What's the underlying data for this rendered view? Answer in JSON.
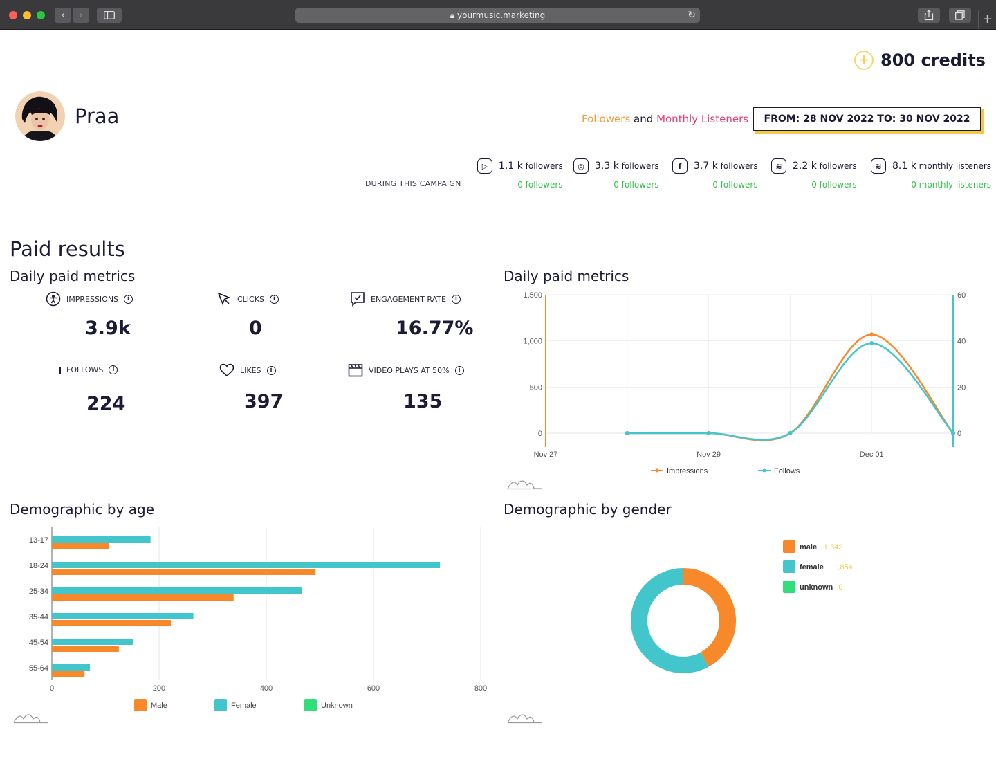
{
  "browser": {
    "url": "yourmusic.marketing"
  },
  "credits": {
    "label": "800 credits"
  },
  "artist": {
    "name": "Praa"
  },
  "legend_top": {
    "followers": "Followers",
    "and": "and",
    "listeners": "Monthly Listeners"
  },
  "date_range": "FROM: 28 NOV 2022 TO: 30 NOV 2022",
  "campaign_label": "DURING THIS CAMPAIGN",
  "social": [
    {
      "icon": "youtube-icon",
      "count": "1.1 k",
      "unit": "followers",
      "delta": "0 followers"
    },
    {
      "icon": "instagram-icon",
      "count": "3.3 k",
      "unit": "followers",
      "delta": "0 followers"
    },
    {
      "icon": "facebook-icon",
      "count": "3.7 k",
      "unit": "followers",
      "delta": "0 followers"
    },
    {
      "icon": "spotify-icon",
      "count": "2.2 k",
      "unit": "followers",
      "delta": "0 followers"
    },
    {
      "icon": "spotify-icon",
      "count": "8.1 k",
      "unit": "monthly listeners",
      "delta": "0 monthly listeners"
    }
  ],
  "paid": {
    "title": "Paid results",
    "daily_title": "Daily paid metrics",
    "metrics": [
      {
        "icon": "impressions-icon",
        "label": "IMPRESSIONS",
        "value": "3.9k"
      },
      {
        "icon": "cursor-icon",
        "label": "CLICKS",
        "value": "0"
      },
      {
        "icon": "engagement-icon",
        "label": "ENGAGEMENT RATE",
        "value": "16.77%"
      },
      {
        "icon": "follows-icon",
        "label": "FOLLOWS",
        "value": "224"
      },
      {
        "icon": "heart-icon",
        "label": "LIKES",
        "value": "397"
      },
      {
        "icon": "clapper-icon",
        "label": "VIDEO PLAYS AT 50%",
        "value": "135"
      }
    ]
  },
  "colors": {
    "orange": "#f7892a",
    "teal": "#42c6cc",
    "green": "#2fe07a",
    "navy": "#1c1b35",
    "gold": "#f6c843"
  },
  "chart_data": [
    {
      "type": "line",
      "title": "Daily paid metrics",
      "x": [
        "Nov 27",
        "Nov 28",
        "Nov 29",
        "Nov 30",
        "Dec 01",
        "Dec 02"
      ],
      "x_tick_labels": [
        "Nov 27",
        "Nov 29",
        "Dec 01"
      ],
      "series": [
        {
          "name": "Impressions",
          "axis": "left",
          "color": "#f7892a",
          "values": [
            null,
            0,
            0,
            0,
            1070,
            0
          ]
        },
        {
          "name": "Follows",
          "axis": "right",
          "color": "#42c6cc",
          "values": [
            null,
            0,
            0,
            0,
            39,
            0
          ]
        }
      ],
      "ylim_left": [
        0,
        1500
      ],
      "yticks_left": [
        "0",
        "500",
        "1,000",
        "1,500"
      ],
      "ylim_right": [
        0,
        60
      ],
      "yticks_right": [
        "0",
        "20",
        "40",
        "60"
      ],
      "legend_position": "bottom",
      "grid": true
    },
    {
      "type": "bar",
      "orientation": "horizontal",
      "title": "Demographic by age",
      "categories": [
        "13-17",
        "18-24",
        "25-34",
        "35-44",
        "45-54",
        "55-64"
      ],
      "series": [
        {
          "name": "Female",
          "color": "#42c6cc",
          "values": [
            184,
            724,
            466,
            264,
            151,
            71
          ]
        },
        {
          "name": "Male",
          "color": "#f7892a",
          "values": [
            107,
            492,
            339,
            222,
            125,
            61
          ]
        },
        {
          "name": "Unknown",
          "color": "#2fe07a",
          "values": [
            0,
            0,
            0,
            0,
            0,
            0
          ]
        }
      ],
      "xlim": [
        0,
        800
      ],
      "xticks": [
        "0",
        "200",
        "400",
        "600",
        "800"
      ],
      "legend": [
        "Male",
        "Female",
        "Unknown"
      ],
      "legend_position": "bottom",
      "grid": true
    },
    {
      "type": "pie",
      "title": "Demographic by gender",
      "donut": true,
      "slices": [
        {
          "name": "male",
          "value": 1342,
          "label": "1,342",
          "color": "#f7892a"
        },
        {
          "name": "female",
          "value": 1854,
          "label": "1,854",
          "color": "#42c6cc"
        },
        {
          "name": "unknown",
          "value": 0,
          "label": "0",
          "color": "#2fe07a"
        }
      ],
      "legend_position": "right"
    }
  ],
  "demo": {
    "age_title": "Demographic by age",
    "gender_title": "Demographic by gender"
  }
}
